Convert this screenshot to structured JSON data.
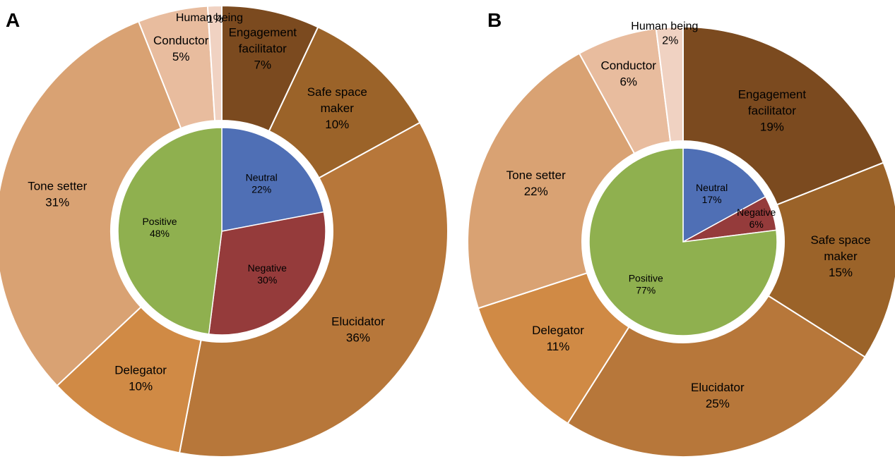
{
  "chart_data": [
    {
      "panel": "A",
      "type": "pie",
      "outer_ring": {
        "labels": [
          "Engagement facilitator",
          "Safe space maker",
          "Elucidator",
          "Delegator",
          "Tone setter",
          "Conductor",
          "Human being"
        ],
        "values": [
          7,
          10,
          36,
          10,
          31,
          5,
          1
        ],
        "value_labels": [
          "7%",
          "10%",
          "36%",
          "10%",
          "31%",
          "5%",
          "1%"
        ],
        "colors": [
          "#7b4a1f",
          "#9b6329",
          "#b7773a",
          "#d08a45",
          "#d9a273",
          "#e8bc9e",
          "#f0d2c2"
        ]
      },
      "inner_pie": {
        "labels": [
          "Neutral",
          "Negative",
          "Positive"
        ],
        "values": [
          22,
          30,
          48
        ],
        "value_labels": [
          "22%",
          "30%",
          "48%"
        ],
        "colors": [
          "#4f6fb5",
          "#953b3b",
          "#8fb04f"
        ]
      }
    },
    {
      "panel": "B",
      "type": "pie",
      "outer_ring": {
        "labels": [
          "Engagement facilitator",
          "Safe space maker",
          "Elucidator",
          "Delegator",
          "Tone setter",
          "Conductor",
          "Human being"
        ],
        "values": [
          19,
          15,
          25,
          11,
          22,
          6,
          2
        ],
        "value_labels": [
          "19%",
          "15%",
          "25%",
          "11%",
          "22%",
          "6%",
          "2%"
        ],
        "colors": [
          "#7b4a1f",
          "#9b6329",
          "#b7773a",
          "#d08a45",
          "#d9a273",
          "#e8bc9e",
          "#f0d2c2"
        ]
      },
      "inner_pie": {
        "labels": [
          "Neutral",
          "Negative",
          "Positive"
        ],
        "values": [
          17,
          6,
          77
        ],
        "value_labels": [
          "17%",
          "6%",
          "77%"
        ],
        "colors": [
          "#4f6fb5",
          "#953b3b",
          "#8fb04f"
        ]
      }
    }
  ]
}
